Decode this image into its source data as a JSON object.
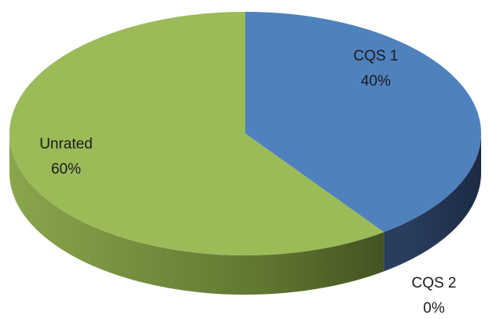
{
  "chart_data": {
    "type": "pie",
    "style": "3d",
    "slices": [
      {
        "label": "CQS 1",
        "value": 40,
        "value_label": "40%",
        "color": "#4f81bd"
      },
      {
        "label": "CQS 2",
        "value": 0,
        "value_label": "0%",
        "color": "#c0504d"
      },
      {
        "label": "Unrated",
        "value": 60,
        "value_label": "60%",
        "color": "#9bbb59"
      }
    ],
    "title": "",
    "legend": "none"
  }
}
